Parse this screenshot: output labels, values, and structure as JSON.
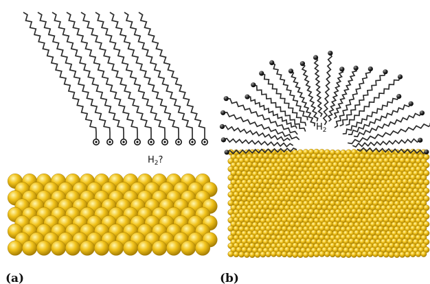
{
  "panels": [
    {
      "id": "a",
      "label": "(a)",
      "gas_label": "H",
      "gas_sub": "2",
      "gas_suffix": "?"
    },
    {
      "id": "b",
      "label": "(b)",
      "gas_label": "H",
      "gas_sub": "2",
      "gas_suffix": ""
    }
  ],
  "colors": {
    "gold_light": "#fff7b0",
    "gold_mid": "#f1c21b",
    "gold_dark": "#a27a00",
    "chain": "#2a2a2a",
    "headgroup": "#1a1a1a"
  }
}
